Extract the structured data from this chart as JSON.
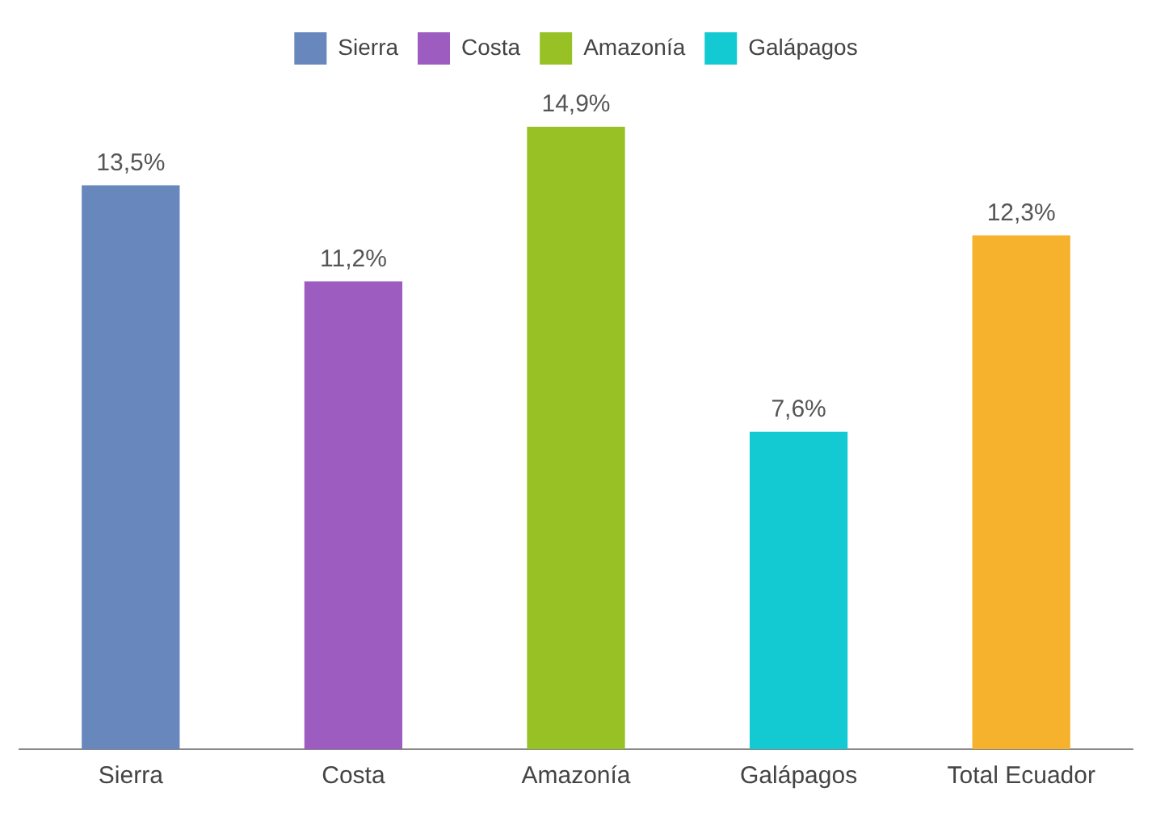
{
  "chart_data": {
    "type": "bar",
    "categories": [
      "Sierra",
      "Costa",
      "Amazonía",
      "Galápagos",
      "Total Ecuador"
    ],
    "legend": "top",
    "grid": false,
    "series": [
      {
        "name": "Sierra",
        "color": "#6787bd",
        "values": [
          13.5,
          null,
          null,
          null,
          null
        ],
        "value_labels": [
          "13,5%",
          null,
          null,
          null,
          null
        ]
      },
      {
        "name": "Costa",
        "color": "#9d5cbf",
        "values": [
          null,
          11.2,
          null,
          null,
          null
        ],
        "value_labels": [
          null,
          "11,2%",
          null,
          null,
          null
        ]
      },
      {
        "name": "Amazonía",
        "color": "#97c124",
        "values": [
          null,
          null,
          14.9,
          null,
          null
        ],
        "value_labels": [
          null,
          null,
          "14,9%",
          null,
          null
        ]
      },
      {
        "name": "Galápagos",
        "color": "#13cad3",
        "values": [
          null,
          null,
          null,
          7.6,
          null
        ],
        "value_labels": [
          null,
          null,
          null,
          "7,6%",
          null
        ]
      },
      {
        "color": "#f6b12d",
        "values": [
          null,
          null,
          null,
          null,
          12.3
        ],
        "value_labels": [
          null,
          null,
          null,
          null,
          "12,3%"
        ]
      }
    ]
  }
}
